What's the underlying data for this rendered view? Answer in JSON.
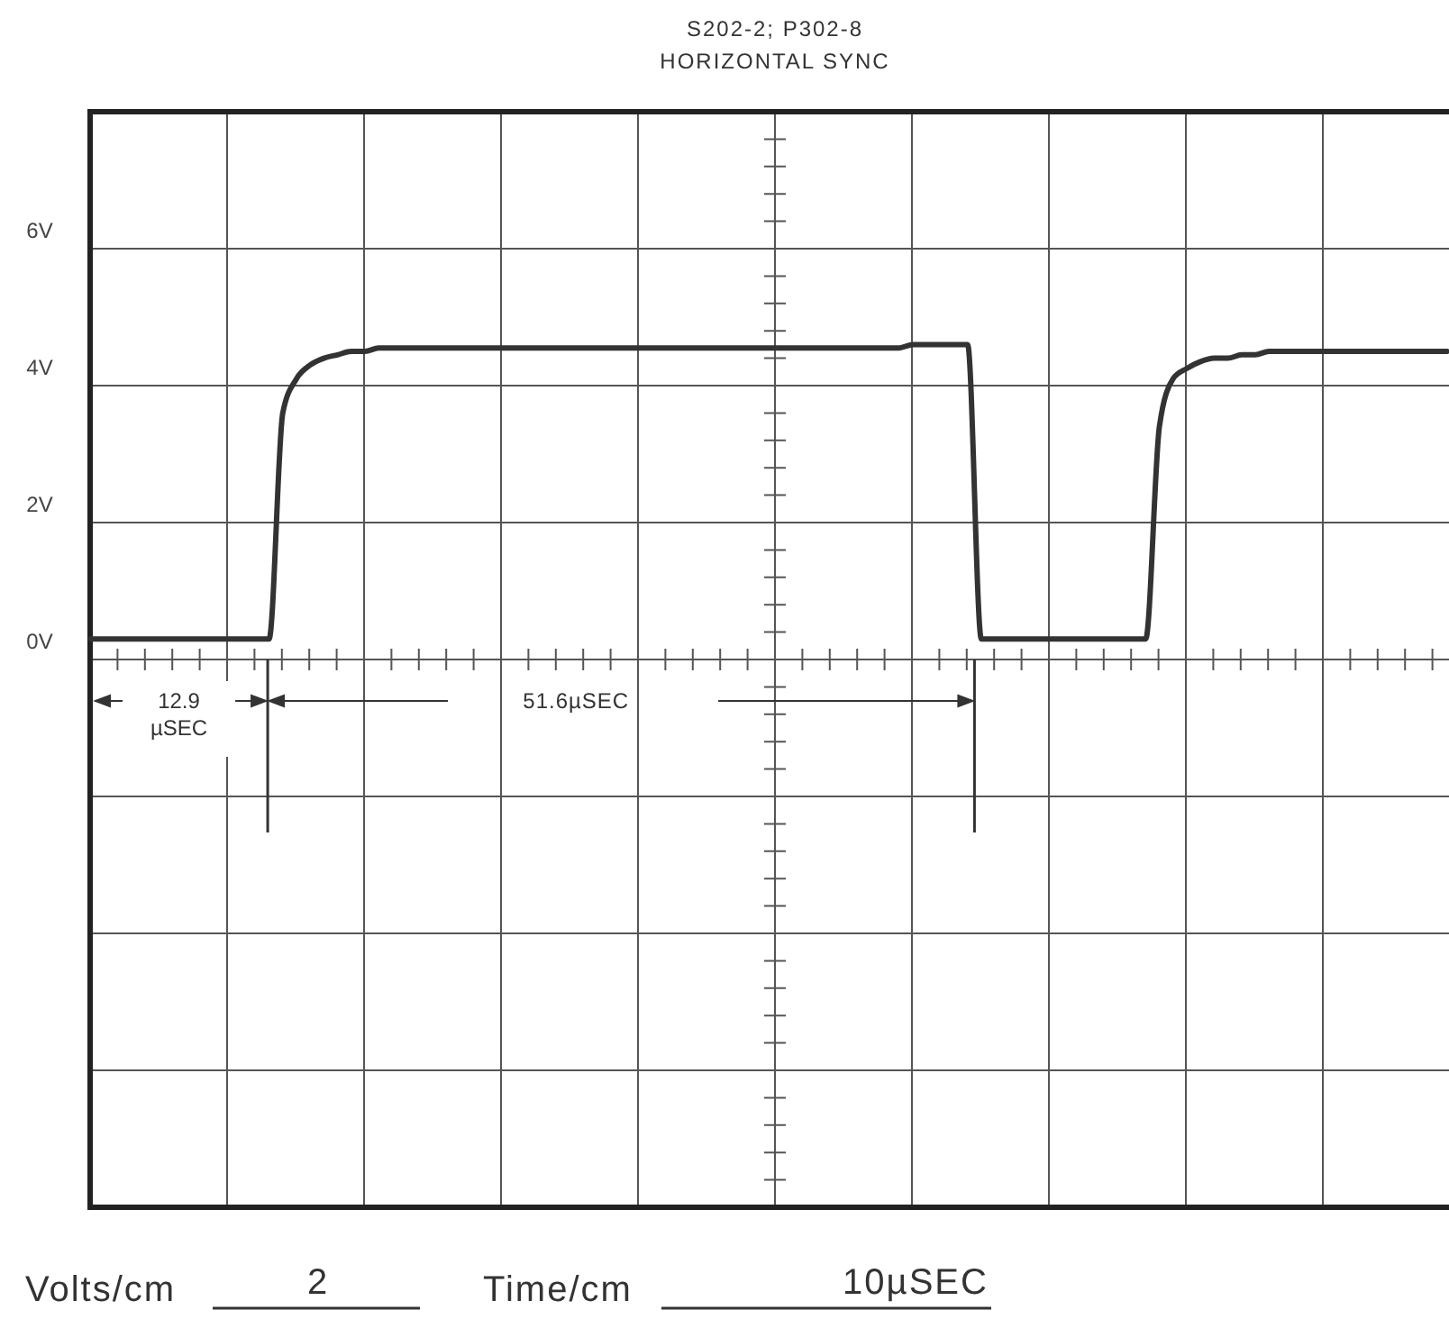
{
  "chart_data": {
    "type": "line",
    "title": "S202-2; P302-8",
    "subtitle": "HORIZONTAL SYNC",
    "categories": [
      null,
      null,
      null,
      null,
      null,
      null,
      null,
      null,
      null,
      null,
      null,
      null,
      null,
      null,
      null,
      null,
      null,
      null,
      null,
      null,
      null,
      null,
      null,
      null,
      null,
      null,
      null,
      null,
      null,
      null,
      null,
      null,
      null,
      null,
      null,
      null,
      null,
      null,
      null,
      null,
      null,
      null,
      null,
      null,
      null,
      null,
      null,
      null,
      null,
      null,
      null,
      null,
      null,
      null,
      null,
      null,
      null,
      null,
      null,
      null,
      null,
      null,
      null,
      null,
      null,
      null,
      null,
      null,
      null,
      null,
      null,
      null,
      null,
      null,
      null,
      null,
      null,
      null,
      null,
      null,
      null,
      null,
      null,
      null,
      null,
      null,
      null,
      null,
      null,
      null,
      null,
      null,
      null,
      null,
      null,
      null,
      null,
      null,
      null,
      null
    ],
    "series": [
      {
        "color": "#333333",
        "values": [
          0.3,
          0.3,
          0.3,
          0.3,
          0.3,
          0.3,
          0.3,
          0.3,
          0.3,
          0.3,
          0.3,
          0.3,
          0.3,
          0.3,
          3.6,
          4.1,
          4.3,
          4.4,
          4.45,
          4.5,
          4.5,
          4.55,
          4.55,
          4.55,
          4.55,
          4.55,
          4.55,
          4.55,
          4.55,
          4.55,
          4.55,
          4.55,
          4.55,
          4.55,
          4.55,
          4.55,
          4.55,
          4.55,
          4.55,
          4.55,
          4.55,
          4.55,
          4.55,
          4.55,
          4.55,
          4.55,
          4.55,
          4.55,
          4.55,
          4.55,
          4.55,
          4.55,
          4.55,
          4.55,
          4.55,
          4.55,
          4.55,
          4.55,
          4.55,
          4.55,
          4.6,
          4.6,
          4.6,
          4.6,
          4.6,
          0.3,
          0.3,
          0.3,
          0.3,
          0.3,
          0.3,
          0.3,
          0.3,
          0.3,
          0.3,
          0.3,
          0.3,
          0.3,
          3.4,
          4.1,
          4.25,
          4.35,
          4.4,
          4.4,
          4.45,
          4.45,
          4.5,
          4.5,
          4.5,
          4.5,
          4.5,
          4.5,
          4.5,
          4.5,
          4.5,
          4.5,
          4.5,
          4.5,
          4.5,
          4.5
        ]
      }
    ],
    "ylim": [
      -8,
      8
    ],
    "yticks": [
      {
        "value": -8,
        "label": null
      },
      {
        "value": -6,
        "label": null
      },
      {
        "value": -4,
        "label": null
      },
      {
        "value": -2,
        "label": null
      },
      {
        "value": 0,
        "label": "0V"
      },
      {
        "value": 2,
        "label": "2V"
      },
      {
        "value": 4,
        "label": "4V"
      },
      {
        "value": 6,
        "label": "6V"
      },
      {
        "value": 8,
        "label": null
      }
    ],
    "grid": true,
    "marker": "none",
    "line_style": "solid",
    "annotations": [
      "12.9 µSEC",
      "51.6µSEC",
      "Volts/cm",
      "2",
      "Time/cm",
      "10µSEC"
    ]
  }
}
